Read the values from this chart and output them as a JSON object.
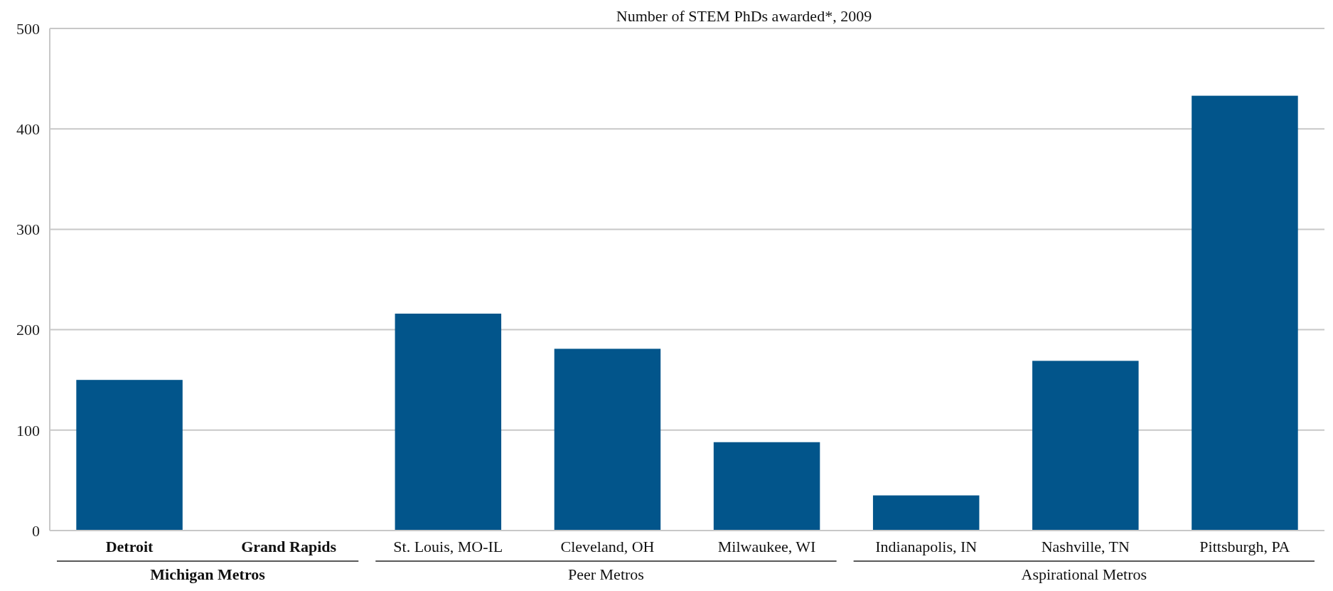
{
  "chart_data": {
    "type": "bar",
    "title": "Number of STEM PhDs awarded*, 2009",
    "categories": [
      "Detroit",
      "Grand Rapids",
      "St. Louis, MO-IL",
      "Cleveland, OH",
      "Milwaukee, WI",
      "Indianapolis, IN",
      "Nashville, TN",
      "Pittsburgh, PA"
    ],
    "values": [
      150,
      0,
      216,
      181,
      88,
      35,
      169,
      433
    ],
    "color": "#02558b",
    "ylim": [
      0,
      500
    ],
    "yticks": [
      0,
      100,
      200,
      300,
      400,
      500
    ],
    "grid": "y",
    "annotations": [
      "Michigan Metros",
      "Peer Metros",
      "Aspirational Metros"
    ]
  }
}
